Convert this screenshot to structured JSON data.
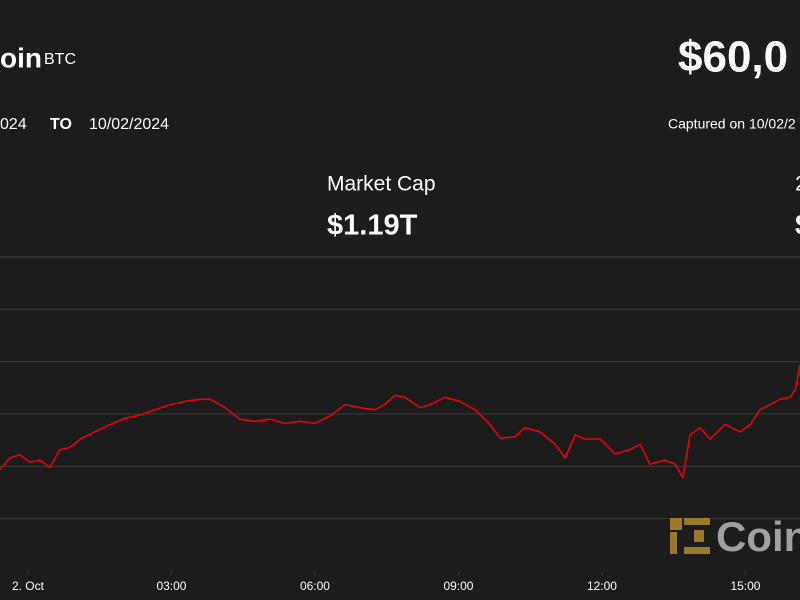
{
  "header": {
    "name": "oin",
    "symbol": "BTC",
    "price": "$60,0",
    "from": "024",
    "to_word": "TO",
    "to": "10/02/2024",
    "captured": "Captured on 10/02/2"
  },
  "stats": {
    "label": "Market Cap",
    "value": "$1.19T",
    "right_label": "2",
    "right_value": "$"
  },
  "watermark": "Coin",
  "chart_data": {
    "type": "line",
    "x": [
      -0.59,
      -0.38,
      -0.17,
      0.04,
      0.25,
      0.46,
      0.67,
      0.88,
      1.09,
      1.4,
      1.72,
      2.03,
      2.34,
      2.66,
      2.97,
      3.28,
      3.6,
      3.81,
      4.12,
      4.43,
      4.75,
      5.06,
      5.37,
      5.69,
      6.0,
      6.31,
      6.63,
      6.94,
      7.25,
      7.46,
      7.67,
      7.88,
      8.2,
      8.4,
      8.72,
      9.03,
      9.35,
      9.66,
      9.87,
      10.18,
      10.39,
      10.7,
      11.02,
      11.23,
      11.44,
      11.65,
      11.96,
      12.27,
      12.59,
      12.8,
      13.0,
      13.32,
      13.53,
      13.69,
      13.84,
      14.05,
      14.26,
      14.57,
      14.89,
      15.1,
      15.3,
      15.51,
      15.72,
      15.93,
      16.04,
      16.14
    ],
    "series": [
      {
        "name": "BTC",
        "color": "#e8000b",
        "values": [
          58970,
          59080,
          59110,
          59040,
          59060,
          58990,
          59160,
          59180,
          59260,
          59330,
          59400,
          59460,
          59490,
          59540,
          59590,
          59620,
          59640,
          59640,
          59560,
          59450,
          59430,
          59450,
          59410,
          59430,
          59410,
          59480,
          59590,
          59560,
          59540,
          59590,
          59680,
          59660,
          59560,
          59590,
          59660,
          59620,
          59540,
          59400,
          59270,
          59280,
          59370,
          59330,
          59210,
          59080,
          59300,
          59260,
          59260,
          59120,
          59160,
          59210,
          59020,
          59060,
          59020,
          58890,
          59300,
          59370,
          59260,
          59400,
          59330,
          59400,
          59540,
          59590,
          59640,
          59660,
          59730,
          59970
        ]
      }
    ],
    "xlim": [
      -0.585,
      16.14
    ],
    "xticks": [
      {
        "value": 0,
        "label": "2. Oct"
      },
      {
        "value": 3,
        "label": "03:00"
      },
      {
        "value": 6,
        "label": "06:00"
      },
      {
        "value": 9,
        "label": "09:00"
      },
      {
        "value": 12,
        "label": "12:00"
      },
      {
        "value": 15,
        "label": "15:00"
      }
    ],
    "ylim": [
      58000,
      61000
    ],
    "yticks": [
      58500,
      59000,
      59500,
      60000,
      60500
    ],
    "grid": true
  }
}
